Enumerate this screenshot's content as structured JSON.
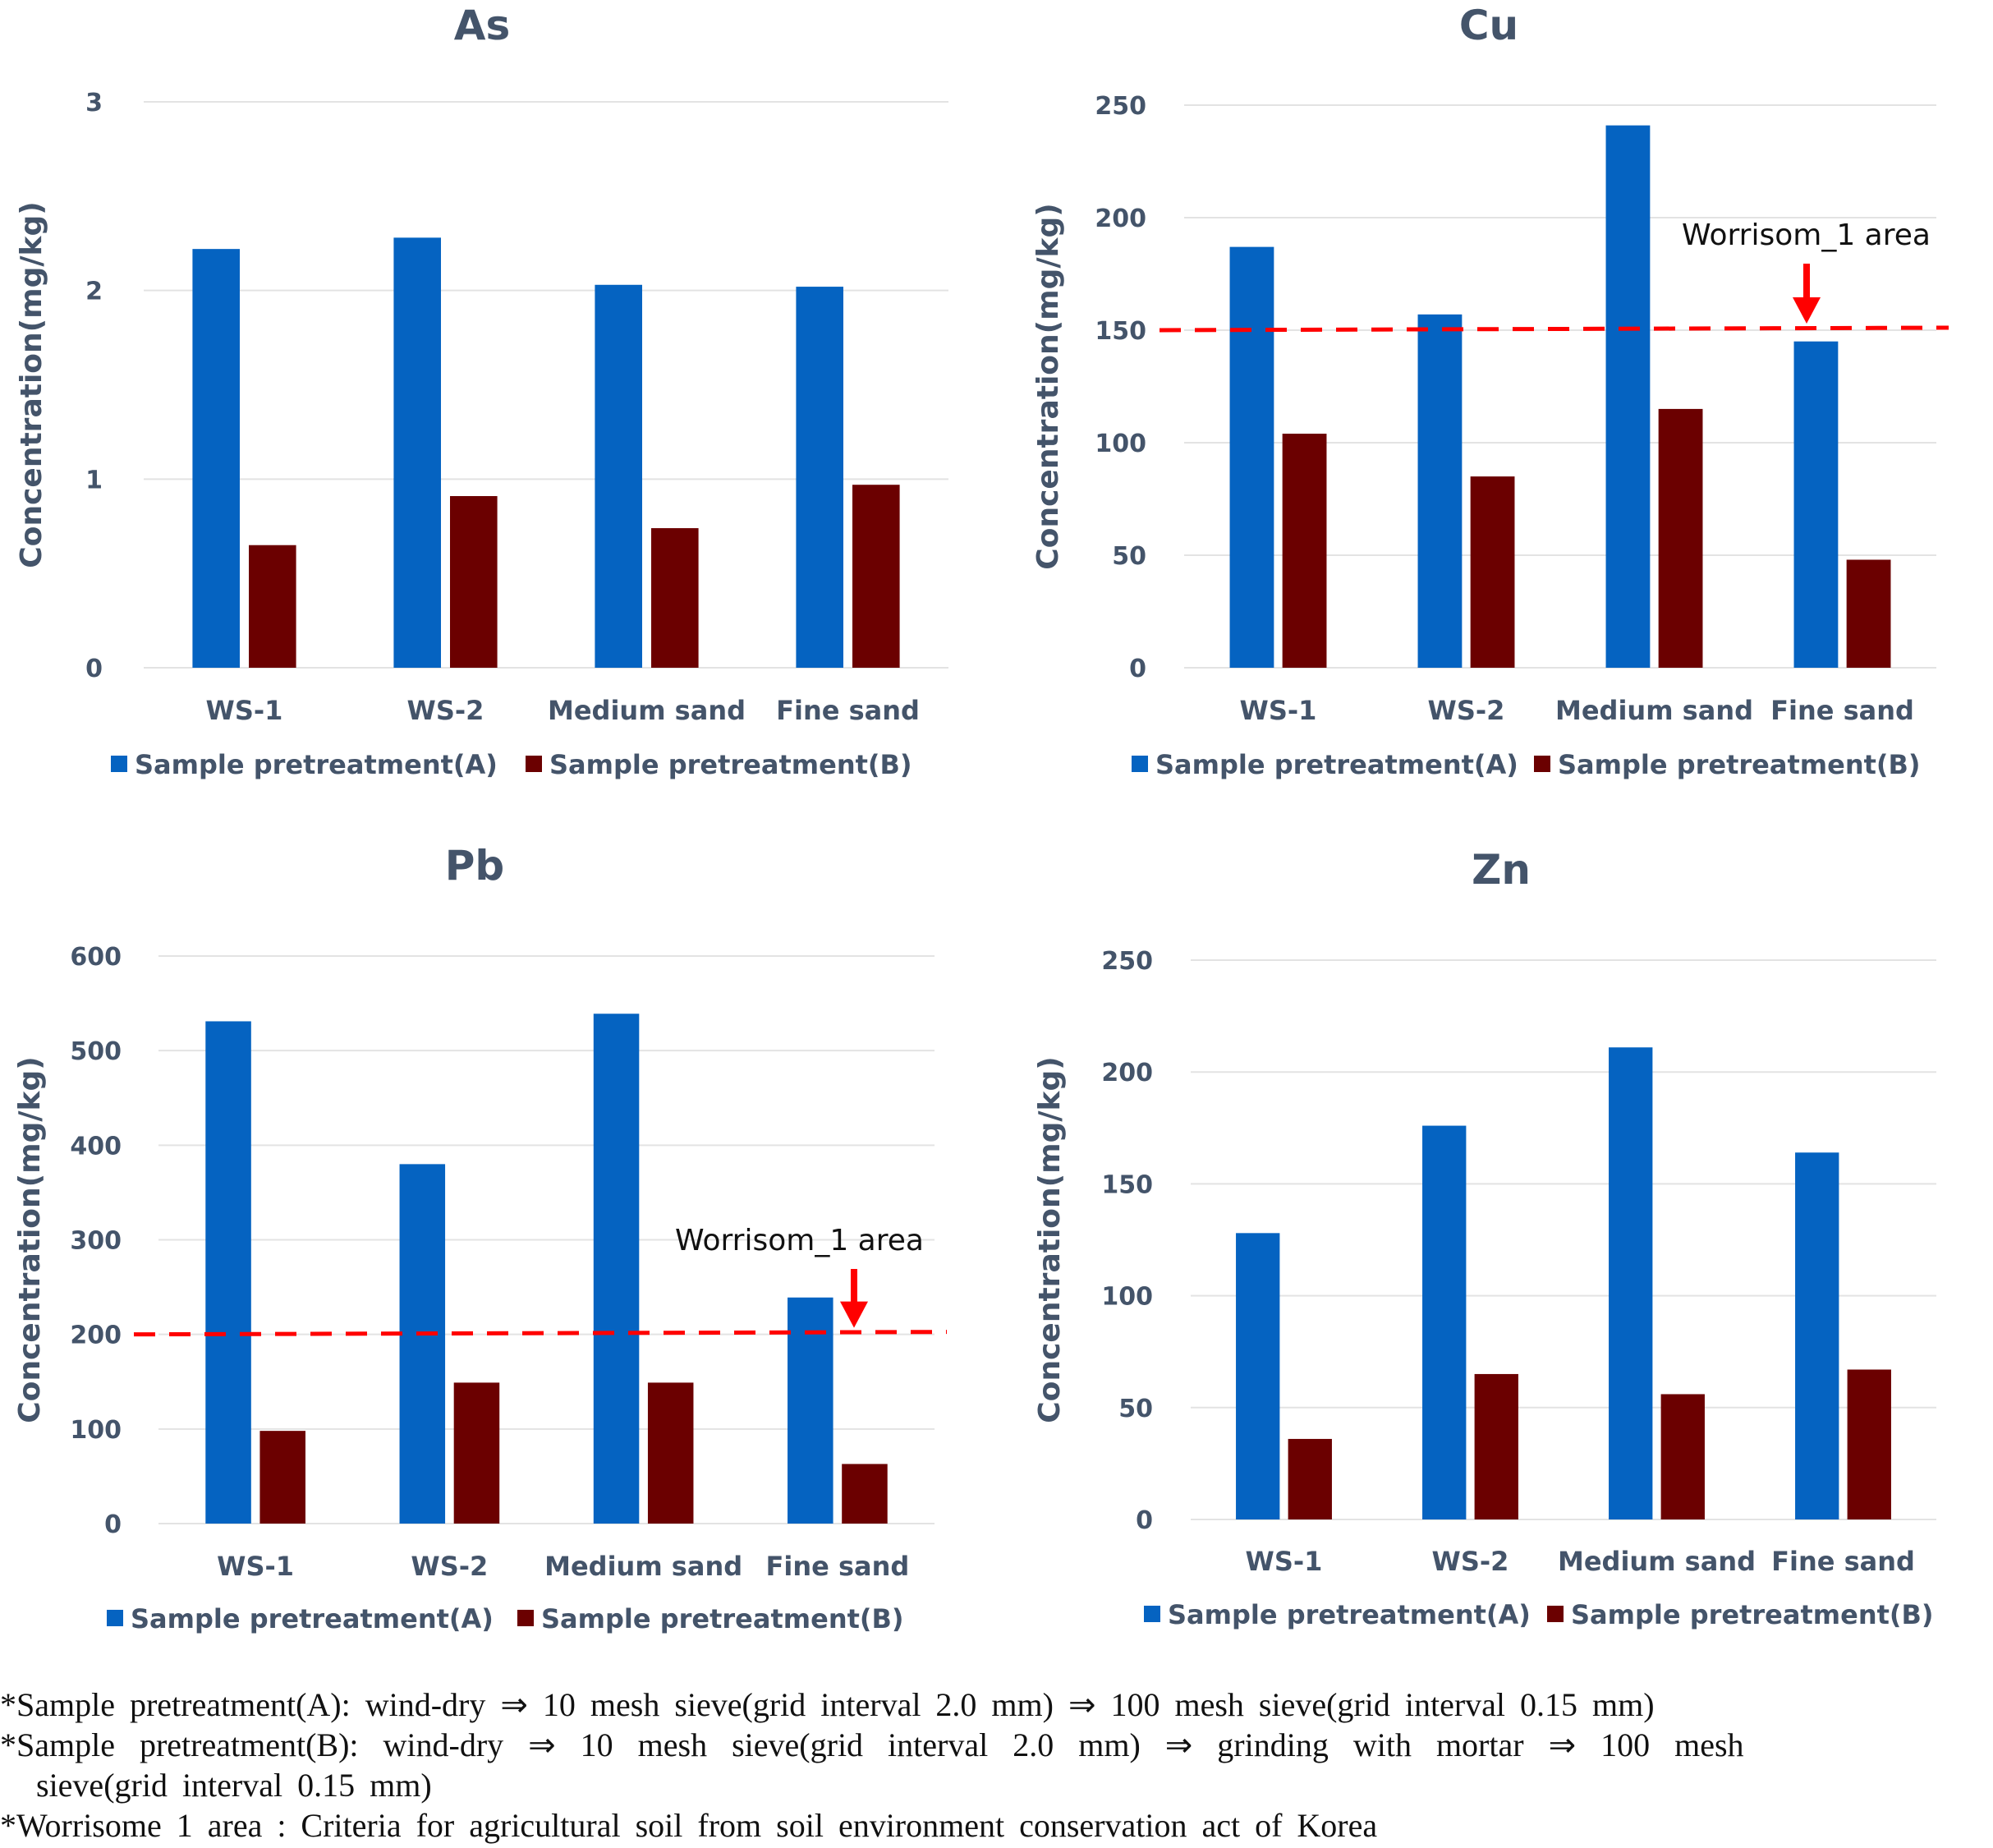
{
  "chart_data": [
    {
      "type": "bar",
      "title": "As",
      "xlabel": "",
      "ylabel": "Concentration(mg/kg)",
      "categories": [
        "WS-1",
        "WS-2",
        "Medium sand",
        "Fine sand"
      ],
      "yticks": [
        "0",
        "1",
        "2",
        "3"
      ],
      "ylim": [
        0,
        3
      ],
      "tick_step": 1,
      "grid": true,
      "legend_position": "bottom",
      "series": [
        {
          "name": "Sample pretreatment(A)",
          "color": "#0563c1",
          "values": [
            2.22,
            2.28,
            2.03,
            2.02
          ]
        },
        {
          "name": "Sample pretreatment(B)",
          "color": "#6b0000",
          "values": [
            0.65,
            0.91,
            0.74,
            0.97
          ]
        }
      ]
    },
    {
      "type": "bar",
      "title": "Cu",
      "xlabel": "",
      "ylabel": "Concentration(mg/kg)",
      "categories": [
        "WS-1",
        "WS-2",
        "Medium sand",
        "Fine sand"
      ],
      "yticks": [
        "0",
        "50",
        "100",
        "150",
        "200",
        "250"
      ],
      "ylim": [
        0,
        250
      ],
      "tick_step": 50,
      "grid": true,
      "legend_position": "bottom",
      "threshold": {
        "value": 150,
        "label": "Worrisom_1 area",
        "color": "#ff0000"
      },
      "series": [
        {
          "name": "Sample pretreatment(A)",
          "color": "#0563c1",
          "values": [
            187,
            157,
            241,
            145
          ]
        },
        {
          "name": "Sample pretreatment(B)",
          "color": "#6b0000",
          "values": [
            104,
            85,
            115,
            48
          ]
        }
      ]
    },
    {
      "type": "bar",
      "title": "Pb",
      "xlabel": "",
      "ylabel": "Concentration(mg/kg)",
      "categories": [
        "WS-1",
        "WS-2",
        "Medium sand",
        "Fine sand"
      ],
      "yticks": [
        "0",
        "100",
        "200",
        "300",
        "400",
        "500",
        "600"
      ],
      "ylim": [
        0,
        600
      ],
      "tick_step": 100,
      "grid": true,
      "legend_position": "bottom",
      "threshold": {
        "value": 200,
        "label": "Worrisom_1 area",
        "color": "#ff0000"
      },
      "series": [
        {
          "name": "Sample pretreatment(A)",
          "color": "#0563c1",
          "values": [
            531,
            380,
            539,
            239
          ]
        },
        {
          "name": "Sample pretreatment(B)",
          "color": "#6b0000",
          "values": [
            98,
            149,
            149,
            63
          ]
        }
      ]
    },
    {
      "type": "bar",
      "title": "Zn",
      "xlabel": "",
      "ylabel": "Concentration(mg/kg)",
      "categories": [
        "WS-1",
        "WS-2",
        "Medium sand",
        "Fine sand"
      ],
      "yticks": [
        "0",
        "50",
        "100",
        "150",
        "200",
        "250"
      ],
      "ylim": [
        0,
        250
      ],
      "tick_step": 50,
      "grid": true,
      "legend_position": "bottom",
      "series": [
        {
          "name": "Sample pretreatment(A)",
          "color": "#0563c1",
          "values": [
            128,
            176,
            211,
            164
          ]
        },
        {
          "name": "Sample pretreatment(B)",
          "color": "#6b0000",
          "values": [
            36,
            65,
            56,
            67
          ]
        }
      ]
    }
  ],
  "footnotes": [
    "*Sample pretreatment(A):  wind-dry ⇒ 10 mesh sieve(grid interval 2.0 mm) ⇒ 100 mesh sieve(grid interval 0.15 mm)",
    "*Sample pretreatment(B): wind-dry ⇒ 10 mesh sieve(grid interval 2.0 mm) ⇒ grinding with mortar ⇒ 100 mesh",
    "sieve(grid interval 0.15 mm)",
    "*Worrisome 1 area : Criteria for agricultural soil from soil environment conservation act of Korea"
  ]
}
